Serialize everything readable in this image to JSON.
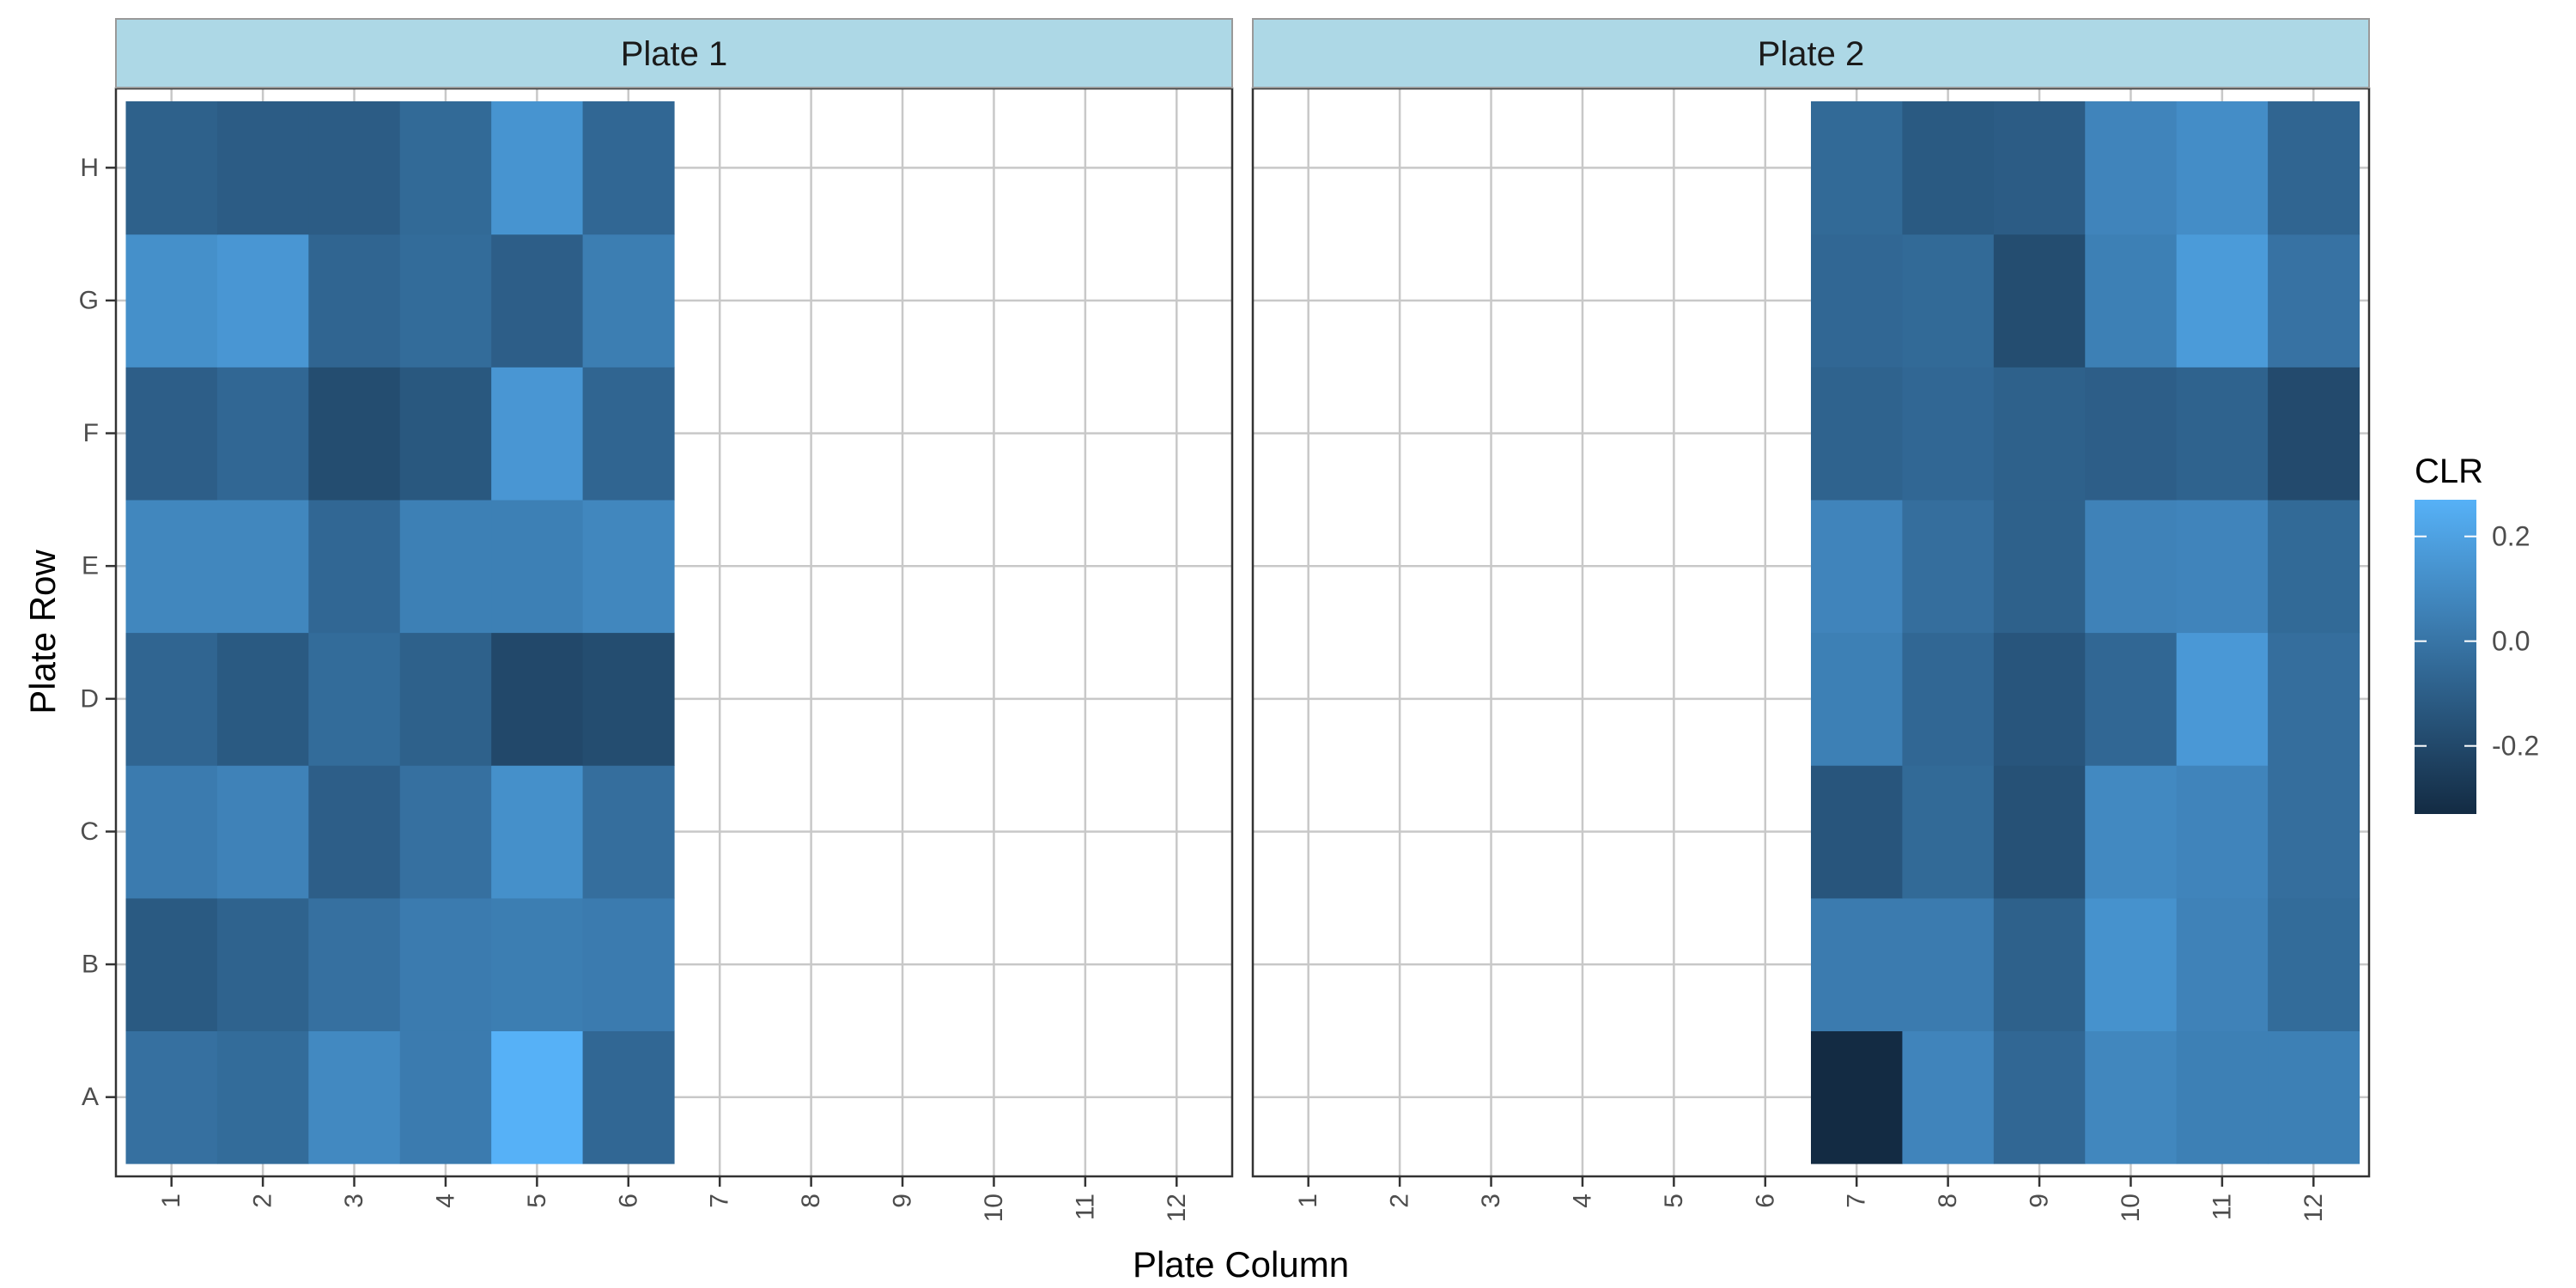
{
  "chart_data": {
    "type": "heatmap",
    "xlabel": "Plate Column",
    "ylabel": "Plate Row",
    "columns": [
      "1",
      "2",
      "3",
      "4",
      "5",
      "6",
      "7",
      "8",
      "9",
      "10",
      "11",
      "12"
    ],
    "rows": [
      "A",
      "B",
      "C",
      "D",
      "E",
      "F",
      "G",
      "H"
    ],
    "facets": [
      {
        "name": "Plate 1",
        "filled_columns": [
          "1",
          "2",
          "3",
          "4",
          "5",
          "6"
        ],
        "values": {
          "H": [
            -0.09,
            -0.11,
            -0.11,
            -0.05,
            0.14,
            -0.06
          ],
          "G": [
            0.12,
            0.15,
            -0.07,
            -0.04,
            -0.1,
            0.04
          ],
          "F": [
            -0.1,
            -0.06,
            -0.18,
            -0.13,
            0.15,
            -0.07
          ],
          "E": [
            0.08,
            0.08,
            -0.06,
            0.05,
            0.05,
            0.08
          ],
          "D": [
            -0.07,
            -0.12,
            -0.04,
            -0.09,
            -0.2,
            -0.18
          ],
          "C": [
            0.03,
            0.06,
            -0.1,
            -0.02,
            0.12,
            -0.03
          ],
          "B": [
            -0.12,
            -0.08,
            -0.02,
            0.03,
            0.04,
            0.03
          ],
          "A": [
            -0.02,
            -0.04,
            0.09,
            0.03,
            0.27,
            -0.06
          ]
        }
      },
      {
        "name": "Plate 2",
        "filled_columns": [
          "7",
          "8",
          "9",
          "10",
          "11",
          "12"
        ],
        "values": {
          "H": [
            -0.05,
            -0.12,
            -0.11,
            0.07,
            0.11,
            -0.07
          ],
          "G": [
            -0.06,
            -0.05,
            -0.18,
            0.05,
            0.17,
            -0.01
          ],
          "F": [
            -0.08,
            -0.06,
            -0.09,
            -0.1,
            -0.08,
            -0.19
          ],
          "E": [
            0.07,
            -0.03,
            -0.09,
            0.06,
            0.07,
            -0.05
          ],
          "D": [
            0.05,
            -0.06,
            -0.14,
            -0.06,
            0.16,
            -0.03
          ],
          "C": [
            -0.14,
            -0.05,
            -0.16,
            0.09,
            0.07,
            -0.03
          ],
          "B": [
            0.03,
            0.03,
            -0.09,
            0.13,
            0.06,
            -0.04
          ],
          "A": [
            -0.33,
            0.07,
            -0.06,
            0.08,
            0.05,
            0.05
          ]
        }
      }
    ],
    "legend": {
      "title": "CLR",
      "placement": "right",
      "ticks": [
        0.2,
        0.0,
        -0.2
      ],
      "tick_labels": [
        "0.2",
        "0.0",
        "-0.2"
      ],
      "range": [
        -0.33,
        0.27
      ],
      "low_color": "#132B43",
      "high_color": "#56B1F7"
    },
    "colors": {
      "strip_fill": "#ADD8E6",
      "strip_border": "#999999",
      "grid": "#C8C8C8",
      "panel_border": "#333333"
    },
    "grid": true
  }
}
